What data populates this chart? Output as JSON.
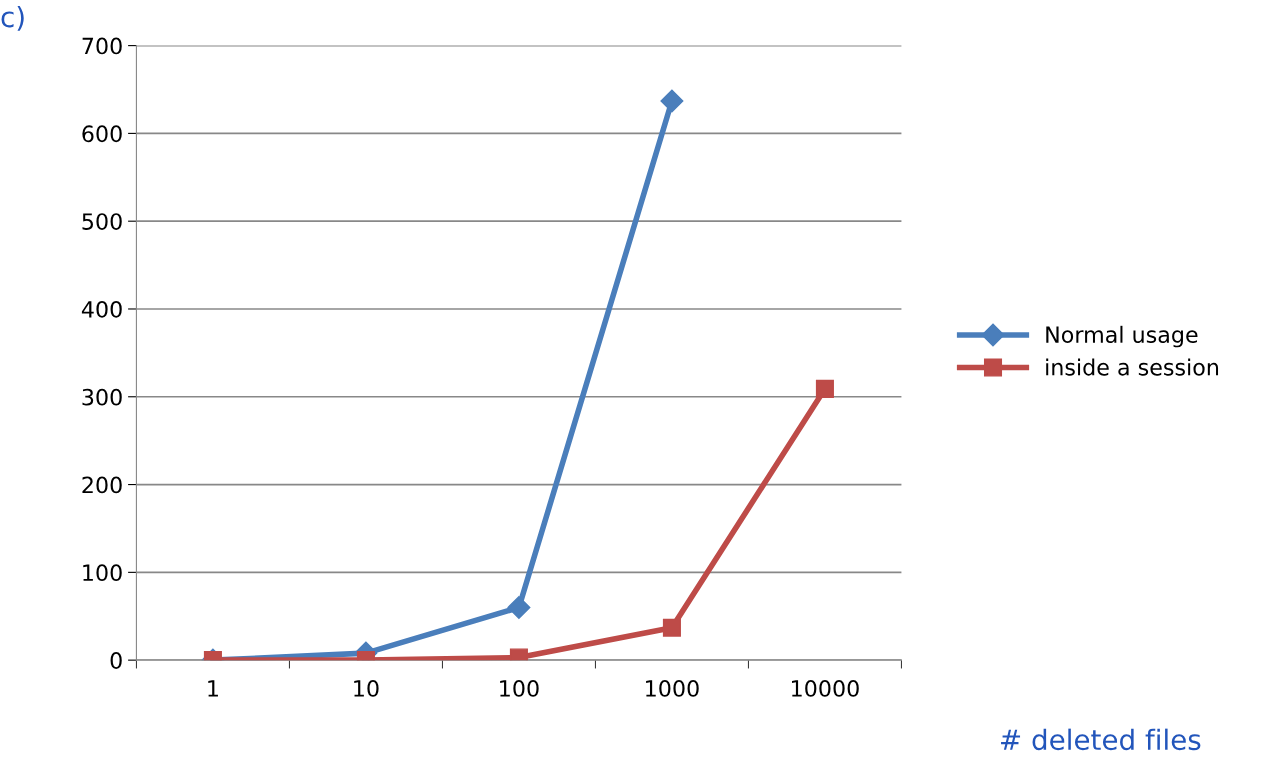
{
  "chart_data": {
    "type": "line",
    "categories": [
      "1",
      "10",
      "100",
      "1000",
      "10000"
    ],
    "series": [
      {
        "name": "Normal usage",
        "color": "#4a7ebb",
        "marker": "diamond",
        "values": [
          0,
          8,
          60,
          637,
          null
        ]
      },
      {
        "name": "inside a session",
        "color": "#be4b48",
        "marker": "square",
        "values": [
          0,
          0,
          3,
          37,
          309
        ]
      }
    ],
    "ylim": [
      0,
      700
    ],
    "yticks": [
      0,
      100,
      200,
      300,
      400,
      500,
      600,
      700
    ],
    "grid": "y",
    "legend": "right",
    "xlabel": "# deleted files",
    "annotations": [
      "c)"
    ]
  }
}
